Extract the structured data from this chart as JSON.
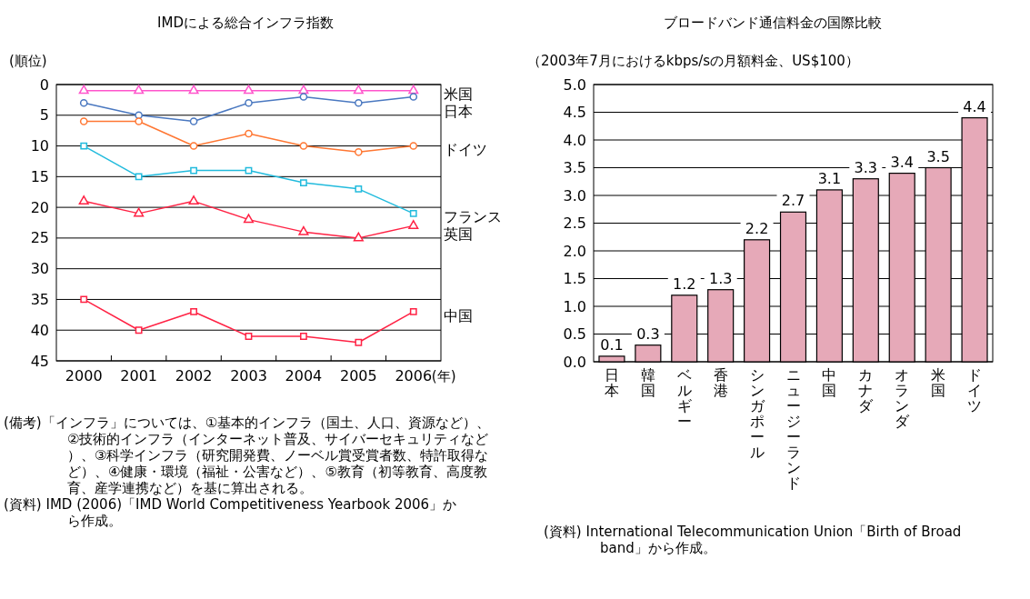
{
  "chart_data": [
    {
      "type": "line",
      "title": "IMDによる総合インフラ指数",
      "ylabel": "(順位)",
      "xlabel": "(年)",
      "categories": [
        "2000",
        "2001",
        "2002",
        "2003",
        "2004",
        "2005",
        "2006"
      ],
      "series": [
        {
          "name": "米国",
          "color": "#ff55cc",
          "marker": "triangle",
          "values": [
            1,
            1,
            1,
            1,
            1,
            1,
            1
          ]
        },
        {
          "name": "日本",
          "color": "#4a78c0",
          "marker": "circle",
          "values": [
            3,
            5,
            6,
            3,
            2,
            3,
            2
          ]
        },
        {
          "name": "ドイツ",
          "color": "#ff7733",
          "marker": "circle",
          "values": [
            6,
            6,
            10,
            8,
            10,
            11,
            10
          ]
        },
        {
          "name": "フランス",
          "color": "#22bbdd",
          "marker": "square",
          "values": [
            10,
            15,
            14,
            14,
            16,
            17,
            21
          ]
        },
        {
          "name": "英国",
          "color": "#ff2244",
          "marker": "triangle",
          "values": [
            19,
            21,
            19,
            22,
            24,
            25,
            23
          ]
        },
        {
          "name": "中国",
          "color": "#ff2244",
          "marker": "square",
          "values": [
            35,
            40,
            37,
            41,
            41,
            42,
            37
          ]
        }
      ],
      "ylim": [
        45,
        0
      ],
      "yticks": [
        0,
        5,
        10,
        15,
        20,
        25,
        30,
        35,
        40,
        45
      ],
      "grid": "y",
      "legend": false,
      "annotations": [
        "(備考)「インフラ」については、①基本的インフラ（国土、人口、資源など）、②技術的インフラ（インターネット普及、サイバーセキュリティなど）、③科学インフラ（研究開発費、ノーベル賞受賞者数、特許取得など）、④健康・環境（福祉・公害など）、⑤教育（初等教育、高度教育、産学連携など）を基に算出される。",
        "(資料) IMD (2006)「IMD World Competitiveness Yearbook 2006」から作成。"
      ]
    },
    {
      "type": "bar",
      "title": "ブロードバンド通信料金の国際比較",
      "subtitle": "（2003年7月におけるkbps/sの月額料金、US$100）",
      "categories": [
        "日本",
        "韓国",
        "ベルギー",
        "香港",
        "シンガポール",
        "ニュージーランド",
        "中国",
        "カナダ",
        "オランダ",
        "米国",
        "ドイツ"
      ],
      "values": [
        0.1,
        0.3,
        1.2,
        1.3,
        2.2,
        2.7,
        3.1,
        3.3,
        3.4,
        3.5,
        4.4
      ],
      "color": "#e6a9b8",
      "ylim": [
        0,
        5
      ],
      "yticks": [
        {
          "value": 0,
          "label": "0.0"
        },
        {
          "value": 0.5,
          "label": "0.5"
        },
        {
          "value": 1,
          "label": "1.0"
        },
        {
          "value": 1.5,
          "label": "1.5"
        },
        {
          "value": 2,
          "label": "2.0"
        },
        {
          "value": 2.5,
          "label": "2.5"
        },
        {
          "value": 3,
          "label": "3.0"
        },
        {
          "value": 3.5,
          "label": "3.5"
        },
        {
          "value": 4,
          "label": "4.0"
        },
        {
          "value": 4.5,
          "label": "4.5"
        },
        {
          "value": 5,
          "label": "5.0"
        }
      ],
      "grid": "y",
      "data_labels": true,
      "annotations": [
        "(資料) International Telecommunication Union「Birth of Broadband」から作成。"
      ]
    }
  ]
}
